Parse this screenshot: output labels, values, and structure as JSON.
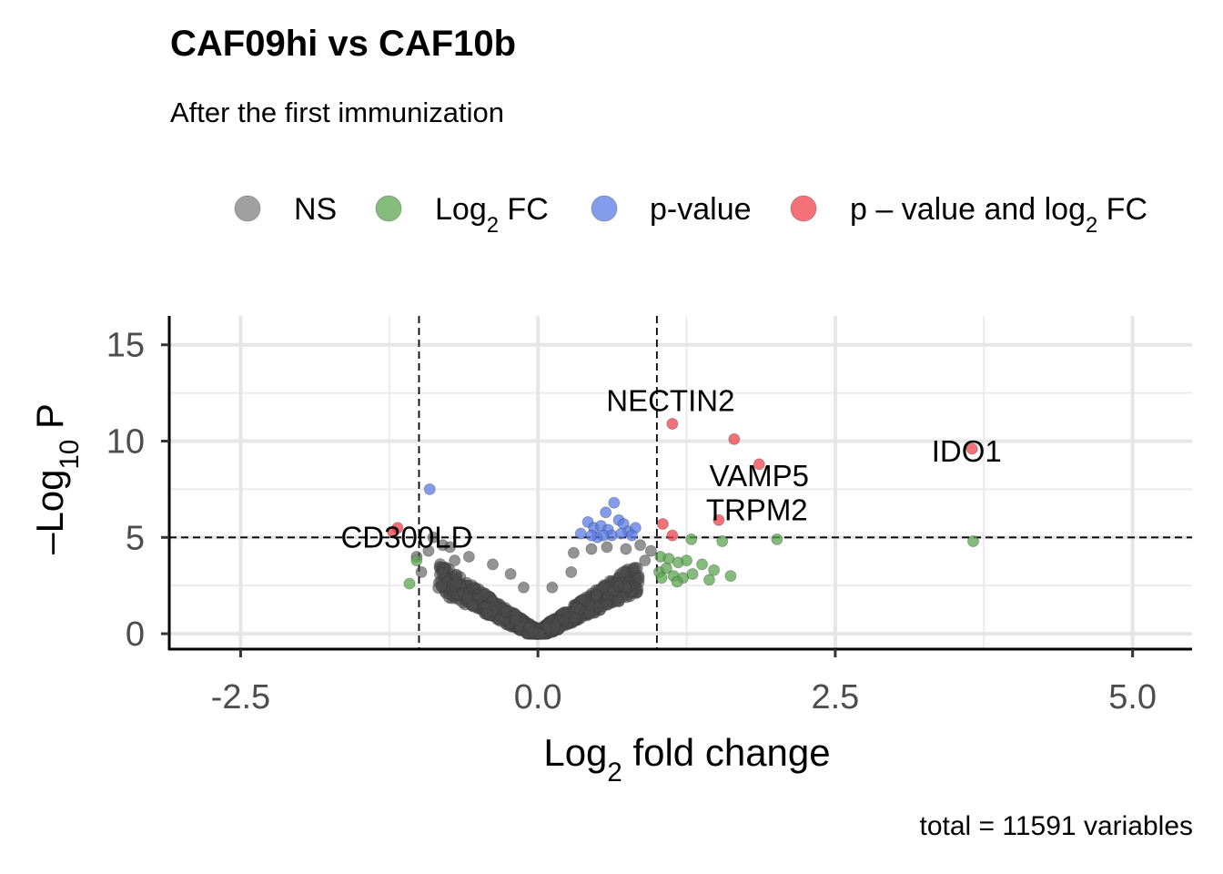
{
  "title": "CAF09hi vs CAF10b",
  "subtitle": "After the first immunization",
  "caption": "total = 11591 variables",
  "legend": {
    "placement": "top",
    "items": [
      {
        "key": "NS",
        "parts": [
          "NS"
        ],
        "color": "#808080"
      },
      {
        "key": "log2fc",
        "parts": [
          "Log",
          "2",
          " FC"
        ],
        "color": "#5aa64f"
      },
      {
        "key": "pvalue",
        "parts": [
          "p-value"
        ],
        "color": "#5b7be6"
      },
      {
        "key": "both",
        "parts": [
          "p – value and log",
          "2",
          " FC"
        ],
        "color": "#f0424a"
      }
    ]
  },
  "chart_data": {
    "type": "scatter",
    "title": "CAF09hi vs CAF10b",
    "subtitle": "After the first immunization",
    "xlabel": {
      "base": "Log",
      "sub": "2",
      "rest": " fold change"
    },
    "ylabel": {
      "base": "–Log",
      "sub": "10",
      "rest": " P"
    },
    "xlim": [
      -3.1,
      5.5
    ],
    "ylim": [
      -0.8,
      16.5
    ],
    "x_ticks": [
      -2.5,
      0.0,
      2.5,
      5.0
    ],
    "x_tick_labels": [
      "-2.5",
      "0.0",
      "2.5",
      "5.0"
    ],
    "y_ticks": [
      0,
      5,
      10,
      15
    ],
    "y_tick_labels": [
      "0",
      "5",
      "10",
      "15"
    ],
    "grid": true,
    "cutoffs": {
      "log2fc": [
        -1,
        1
      ],
      "neg_log10_p": 5
    },
    "series": [
      {
        "name": "p – value and log2 FC",
        "key": "both",
        "color": "#f0424a",
        "points": [
          [
            1.13,
            10.9
          ],
          [
            1.65,
            10.1
          ],
          [
            1.86,
            8.8
          ],
          [
            3.65,
            9.6
          ],
          [
            1.52,
            5.9
          ],
          [
            1.05,
            5.7
          ],
          [
            1.13,
            5.1
          ],
          [
            -1.18,
            5.5
          ],
          [
            -1.22,
            5.3
          ]
        ]
      },
      {
        "name": "Log2 FC",
        "key": "log2fc",
        "color": "#5aa64f",
        "points": [
          [
            3.66,
            4.8
          ],
          [
            2.01,
            4.9
          ],
          [
            1.55,
            4.8
          ],
          [
            1.29,
            4.9
          ],
          [
            1.03,
            4.0
          ],
          [
            1.1,
            3.9
          ],
          [
            1.18,
            3.7
          ],
          [
            1.25,
            3.8
          ],
          [
            1.38,
            3.6
          ],
          [
            1.48,
            3.3
          ],
          [
            1.62,
            3.0
          ],
          [
            1.02,
            3.2
          ],
          [
            1.08,
            3.4
          ],
          [
            1.14,
            3.0
          ],
          [
            1.22,
            2.9
          ],
          [
            1.3,
            3.1
          ],
          [
            1.17,
            2.7
          ],
          [
            1.04,
            2.9
          ],
          [
            1.44,
            2.8
          ],
          [
            -1.08,
            2.6
          ],
          [
            -1.02,
            3.8
          ]
        ]
      },
      {
        "name": "p-value",
        "key": "pvalue",
        "color": "#5b7be6",
        "points": [
          [
            -0.91,
            7.5
          ],
          [
            0.64,
            6.8
          ],
          [
            0.57,
            6.3
          ],
          [
            0.42,
            5.8
          ],
          [
            0.47,
            5.5
          ],
          [
            0.53,
            5.6
          ],
          [
            0.59,
            5.4
          ],
          [
            0.68,
            5.9
          ],
          [
            0.72,
            5.7
          ],
          [
            0.76,
            5.3
          ],
          [
            0.82,
            5.5
          ],
          [
            0.36,
            5.2
          ],
          [
            0.62,
            5.1
          ],
          [
            0.7,
            5.2
          ],
          [
            0.5,
            5.0
          ],
          [
            0.79,
            5.1
          ],
          [
            0.55,
            5.1
          ],
          [
            0.45,
            5.1
          ]
        ]
      }
    ],
    "ns_series": {
      "name": "NS",
      "key": "NS",
      "color": "#4d4d4d",
      "description_of_shape": "V-shaped cloud of ~11500 non-significant genes",
      "extreme_points": [
        [
          -0.88,
          5.0
        ],
        [
          -0.8,
          4.6
        ],
        [
          -0.74,
          4.5
        ],
        [
          -0.58,
          4.0
        ],
        [
          -0.38,
          3.6
        ],
        [
          -0.23,
          3.1
        ],
        [
          -0.12,
          2.4
        ],
        [
          0.12,
          2.4
        ],
        [
          0.28,
          3.2
        ],
        [
          0.3,
          4.2
        ],
        [
          0.45,
          4.4
        ],
        [
          0.58,
          4.5
        ],
        [
          0.74,
          4.4
        ],
        [
          0.86,
          4.6
        ],
        [
          0.95,
          4.3
        ],
        [
          -0.98,
          3.2
        ],
        [
          -1.02,
          4.0
        ],
        [
          -0.92,
          4.3
        ],
        [
          -0.7,
          3.8
        ],
        [
          0.9,
          3.8
        ]
      ]
    },
    "labeled_points": [
      {
        "label": "NECTIN2",
        "x": 1.13,
        "y": 10.9
      },
      {
        "label": "VAMP5",
        "x": 1.86,
        "y": 8.8
      },
      {
        "label": "IDO1",
        "x": 3.65,
        "y": 9.6
      },
      {
        "label": "TRPM2",
        "x": 1.52,
        "y": 5.9
      },
      {
        "label": "CD300LD",
        "x": -1.18,
        "y": 5.5
      }
    ]
  }
}
